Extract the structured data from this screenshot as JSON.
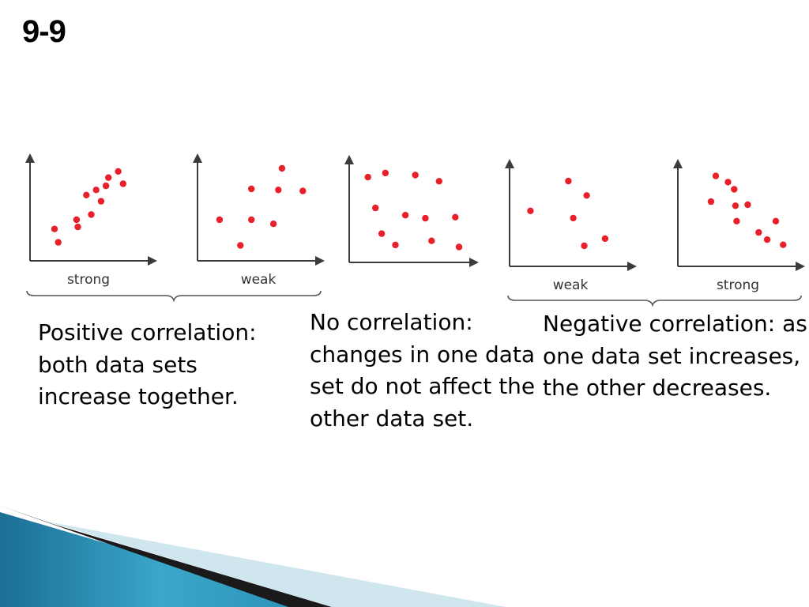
{
  "title": "9-9",
  "captions": {
    "positive": "Positive correlation: both data sets increase together.",
    "none": "No correlation: changes in one data set do not affect the other data set.",
    "negative": "Negative correlation: as one data set increases, the other decreases."
  },
  "colors": {
    "point": "#e8202a",
    "axis": "#3b3b3b",
    "decor_dark": "#1a1a1a",
    "decor_teal": "#2f93b8",
    "decor_light": "#cfe6ef"
  },
  "chart_data": [
    {
      "type": "scatter",
      "label": "strong",
      "group": "positive",
      "xlim": [
        0,
        10
      ],
      "ylim": [
        0,
        10
      ],
      "points": [
        [
          2.0,
          3.1
        ],
        [
          2.3,
          1.8
        ],
        [
          3.8,
          4.0
        ],
        [
          3.9,
          3.3
        ],
        [
          4.6,
          6.4
        ],
        [
          5.0,
          4.5
        ],
        [
          5.4,
          6.9
        ],
        [
          5.8,
          5.8
        ],
        [
          6.2,
          7.3
        ],
        [
          6.4,
          8.1
        ],
        [
          7.2,
          8.7
        ],
        [
          7.6,
          7.5
        ]
      ]
    },
    {
      "type": "scatter",
      "label": "weak",
      "group": "positive",
      "xlim": [
        0,
        10
      ],
      "ylim": [
        0,
        10
      ],
      "points": [
        [
          1.8,
          4.0
        ],
        [
          3.5,
          1.5
        ],
        [
          4.4,
          4.0
        ],
        [
          4.4,
          7.0
        ],
        [
          6.2,
          3.6
        ],
        [
          6.6,
          6.9
        ],
        [
          6.9,
          9.0
        ],
        [
          8.6,
          6.8
        ]
      ]
    },
    {
      "type": "scatter",
      "label": "",
      "group": "none",
      "xlim": [
        0,
        10
      ],
      "ylim": [
        0,
        10
      ],
      "points": [
        [
          1.5,
          8.3
        ],
        [
          2.1,
          5.3
        ],
        [
          2.9,
          8.7
        ],
        [
          2.6,
          2.8
        ],
        [
          3.7,
          1.7
        ],
        [
          4.5,
          4.6
        ],
        [
          5.3,
          8.5
        ],
        [
          6.1,
          4.3
        ],
        [
          6.6,
          2.1
        ],
        [
          7.2,
          7.9
        ],
        [
          8.5,
          4.4
        ],
        [
          8.8,
          1.5
        ]
      ]
    },
    {
      "type": "scatter",
      "label": "weak",
      "group": "negative",
      "xlim": [
        0,
        10
      ],
      "ylim": [
        0,
        10
      ],
      "points": [
        [
          1.7,
          5.4
        ],
        [
          4.8,
          8.3
        ],
        [
          5.2,
          4.7
        ],
        [
          6.1,
          2.0
        ],
        [
          6.3,
          6.9
        ],
        [
          7.8,
          2.7
        ]
      ]
    },
    {
      "type": "scatter",
      "label": "strong",
      "group": "negative",
      "xlim": [
        0,
        10
      ],
      "ylim": [
        0,
        10
      ],
      "points": [
        [
          2.7,
          6.3
        ],
        [
          3.1,
          8.8
        ],
        [
          4.1,
          8.2
        ],
        [
          4.6,
          7.5
        ],
        [
          4.7,
          5.9
        ],
        [
          4.8,
          4.4
        ],
        [
          5.7,
          6.0
        ],
        [
          6.6,
          3.3
        ],
        [
          7.3,
          2.6
        ],
        [
          8.0,
          4.4
        ],
        [
          8.6,
          2.1
        ]
      ]
    }
  ]
}
